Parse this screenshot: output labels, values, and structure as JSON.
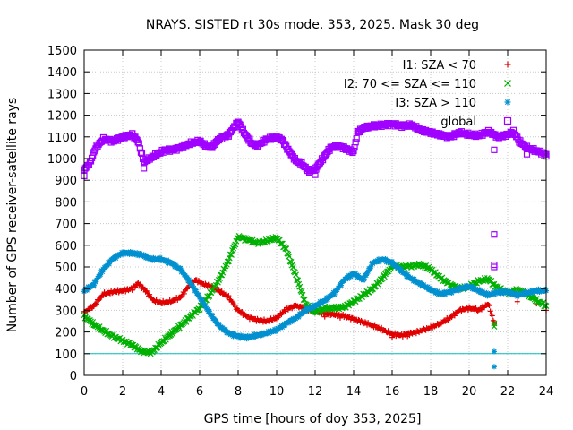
{
  "chart_data": {
    "type": "scatter",
    "title": "NRAYS. SISTED rt 30s mode. 353, 2025. Mask 30 deg",
    "xlabel": "GPS time [hours of doy 353, 2025]",
    "ylabel": "Number of GPS receiver-satellite rays",
    "xlim": [
      0,
      24
    ],
    "ylim": [
      0,
      1500
    ],
    "xticks": [
      "0",
      "2",
      "4",
      "6",
      "8",
      "10",
      "12",
      "14",
      "16",
      "18",
      "20",
      "22",
      "24"
    ],
    "yticks": [
      "0",
      "100",
      "200",
      "300",
      "400",
      "500",
      "600",
      "700",
      "800",
      "900",
      "1000",
      "1100",
      "1200",
      "1300",
      "1400",
      "1500"
    ],
    "legend_position": "top-right",
    "reference_line": {
      "y": 100,
      "color": "#00c0c0"
    },
    "series": [
      {
        "name": "I1: SZA < 70",
        "color": "#e00000",
        "marker": "plus",
        "x": [
          0,
          0.5,
          1,
          1.5,
          2,
          2.5,
          2.8,
          3.2,
          3.6,
          4,
          4.5,
          5,
          5.5,
          5.8,
          6.2,
          6.6,
          7,
          7.5,
          8,
          8.5,
          9,
          9.5,
          10,
          10.5,
          11,
          11.5,
          12,
          12.5,
          13,
          13.5,
          14,
          14.5,
          15,
          15.5,
          16,
          16.5,
          17,
          17.5,
          18,
          18.5,
          19,
          19.5,
          20,
          20.5,
          21,
          21.3
        ],
        "y": [
          290,
          320,
          375,
          385,
          390,
          400,
          425,
          390,
          345,
          335,
          340,
          360,
          420,
          440,
          420,
          410,
          390,
          360,
          300,
          270,
          255,
          250,
          265,
          305,
          320,
          310,
          295,
          285,
          280,
          275,
          260,
          245,
          230,
          210,
          190,
          185,
          195,
          205,
          220,
          240,
          265,
          300,
          310,
          300,
          330,
          240
        ],
        "outliers": [
          [
            12.5,
            270
          ],
          [
            13.3,
            265
          ],
          [
            16,
            175
          ],
          [
            16.8,
            180
          ],
          [
            21.3,
            245
          ],
          [
            22.5,
            340
          ],
          [
            23.5,
            330
          ],
          [
            24,
            300
          ]
        ]
      },
      {
        "name": "I2: 70 <= SZA <= 110",
        "color": "#00b000",
        "marker": "cross",
        "x": [
          0,
          0.5,
          1,
          1.5,
          2,
          2.5,
          3,
          3.5,
          4,
          4.5,
          5,
          5.5,
          6,
          6.5,
          7,
          7.5,
          8,
          8.5,
          9,
          9.5,
          10,
          10.5,
          11,
          11.5,
          12,
          12.5,
          13,
          13.5,
          14,
          14.5,
          15,
          15.5,
          16,
          16.5,
          17,
          17.5,
          18,
          18.5,
          19,
          19.5,
          20,
          20.5,
          21,
          21.3,
          22,
          22.5,
          23,
          23.5,
          24
        ],
        "y": [
          275,
          235,
          205,
          180,
          160,
          140,
          110,
          105,
          150,
          190,
          230,
          270,
          310,
          370,
          440,
          530,
          640,
          625,
          610,
          620,
          635,
          580,
          460,
          330,
          290,
          310,
          310,
          315,
          340,
          370,
          400,
          450,
          505,
          500,
          505,
          510,
          490,
          450,
          420,
          400,
          410,
          435,
          445,
          415,
          380,
          395,
          375,
          345,
          320
        ],
        "outliers": [
          [
            21.3,
            225
          ],
          [
            21.3,
            240
          ]
        ]
      },
      {
        "name": "I3: SZA > 110",
        "color": "#0090d0",
        "marker": "star",
        "x": [
          0,
          0.5,
          1,
          1.5,
          2,
          2.5,
          3,
          3.5,
          4,
          4.5,
          5,
          5.5,
          6,
          6.5,
          7,
          7.5,
          8,
          8.5,
          9,
          9.5,
          10,
          10.5,
          11,
          11.5,
          12,
          12.5,
          13,
          13.5,
          14,
          14.5,
          15,
          15.5,
          16,
          16.5,
          17,
          17.5,
          18,
          18.5,
          19,
          19.5,
          20,
          20.5,
          21,
          21.5,
          22,
          22.5,
          23,
          23.5,
          24
        ],
        "y": [
          390,
          420,
          490,
          540,
          565,
          565,
          555,
          535,
          535,
          520,
          490,
          430,
          360,
          290,
          230,
          195,
          180,
          175,
          185,
          195,
          210,
          240,
          265,
          300,
          320,
          345,
          380,
          440,
          470,
          440,
          520,
          535,
          520,
          480,
          445,
          420,
          395,
          375,
          385,
          400,
          410,
          390,
          370,
          385,
          385,
          370,
          380,
          390,
          390
        ],
        "outliers": [
          [
            21.3,
            110
          ],
          [
            21.3,
            40
          ]
        ]
      },
      {
        "name": "global",
        "color": "#a000ff",
        "marker": "square",
        "x": [
          0,
          0.3,
          0.6,
          1,
          1.5,
          2,
          2.5,
          2.8,
          3.1,
          3.4,
          3.8,
          4.2,
          4.6,
          5,
          5.5,
          6,
          6.3,
          6.6,
          7,
          7.5,
          8,
          8.3,
          8.7,
          9,
          9.5,
          10,
          10.3,
          10.6,
          11,
          11.3,
          11.7,
          12,
          12.4,
          12.8,
          13.2,
          13.6,
          14,
          14.2,
          14.5,
          15,
          15.5,
          16,
          16.5,
          17,
          17.5,
          18,
          18.5,
          19,
          19.5,
          20,
          20.5,
          21,
          21.5,
          22,
          22.3,
          22.6,
          23,
          23.5,
          24
        ],
        "y": [
          950,
          980,
          1050,
          1090,
          1080,
          1100,
          1110,
          1080,
          985,
          1000,
          1020,
          1040,
          1040,
          1050,
          1070,
          1080,
          1060,
          1050,
          1090,
          1110,
          1170,
          1120,
          1070,
          1060,
          1090,
          1100,
          1085,
          1040,
          990,
          975,
          940,
          950,
          1000,
          1050,
          1060,
          1045,
          1030,
          1120,
          1140,
          1150,
          1155,
          1160,
          1150,
          1155,
          1130,
          1120,
          1110,
          1100,
          1120,
          1110,
          1105,
          1125,
          1100,
          1110,
          1125,
          1080,
          1050,
          1035,
          1020
        ],
        "outliers": [
          [
            0,
            920
          ],
          [
            3.1,
            955
          ],
          [
            12,
            925
          ],
          [
            21.3,
            650
          ],
          [
            21.3,
            510
          ],
          [
            21.3,
            500
          ],
          [
            21.3,
            1040
          ],
          [
            23,
            1020
          ],
          [
            24,
            1010
          ]
        ]
      }
    ]
  }
}
